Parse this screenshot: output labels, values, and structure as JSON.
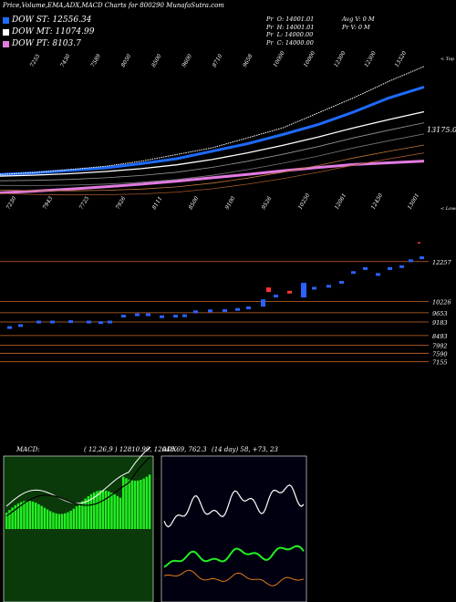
{
  "header": {
    "title": "Price,Volume,EMA,ADX,MACD Charts for 800290",
    "brand": "MunafaSutra.com"
  },
  "dow": [
    {
      "label": "DOW ST: 12556.34",
      "color": "#1e6bff"
    },
    {
      "label": "DOW MT: 11074.99",
      "color": "#ffffff"
    },
    {
      "label": "DOW PT: 8103.7",
      "color": "#e27be0"
    }
  ],
  "ohlc": {
    "col1": [
      "Pr",
      "Pr",
      "Pr",
      "Pr"
    ],
    "col1_vals": [
      "O: 14001.01",
      "H: 14001.01",
      "L: 14000.00",
      "C: 14000.00"
    ],
    "col2": [
      "Avg V: 0  M",
      "Pr  V: 0  M"
    ]
  },
  "price_panel": {
    "top_labels": [
      "7255",
      "7430",
      "7589",
      "8050",
      "8500",
      "9600",
      "8710",
      "9658",
      "10000",
      "10000",
      "12300",
      "12300",
      "13320"
    ],
    "bottom_labels": [
      "7230",
      "7943",
      "7725",
      "7926",
      "8111",
      "8500",
      "9100",
      "9526",
      "10250",
      "12061",
      "12450",
      "13001"
    ],
    "top_tag": "< Top",
    "bottom_tag": "< Lower",
    "price_tag": "13175.00"
  },
  "candle_panel": {
    "levels": [
      "12257",
      "10226",
      "9653",
      "9183",
      "8493",
      "7992",
      "7590",
      "7155"
    ]
  },
  "indicators": {
    "macd_label": "MACD:",
    "macd_vals": "( 12,26,9 ) 12810.99, 12048.69, 762.3",
    "adx_label": "ADX",
    "adx_vals": "(14 day) 58, +73, 23"
  },
  "colors": {
    "ema_short": "#1e6bff",
    "ema_mid": "#ffffff",
    "ema_long": "#e27be0",
    "macd_bar": "#22ee22",
    "adx_plus": "#22ee22",
    "adx_minus": "#e07b1a",
    "level_line": "#cc6a2a"
  },
  "chart_data": [
    {
      "type": "line",
      "title": "Price,Volume,EMA,ADX,MACD Charts for 800290",
      "series": [
        {
          "name": "DOW ST",
          "values": [
            7300,
            7400,
            7550,
            7700,
            7950,
            8250,
            8700,
            9150,
            9700,
            10300,
            11050,
            11900,
            12556
          ]
        },
        {
          "name": "DOW MT",
          "values": [
            7200,
            7260,
            7350,
            7480,
            7650,
            7880,
            8200,
            8600,
            9050,
            9550,
            10100,
            10600,
            11075
          ]
        },
        {
          "name": "DOW PT",
          "values": [
            6200,
            6300,
            6420,
            6560,
            6720,
            6900,
            7100,
            7300,
            7520,
            7720,
            7900,
            8000,
            8104
          ]
        }
      ],
      "price_last": 13175.0,
      "price_levels": [
        12257,
        10226,
        9653,
        9183,
        8493,
        7992,
        7590,
        7155
      ]
    },
    {
      "type": "bar",
      "title": "MACD",
      "params": "12,26,9",
      "macd": 12810.99,
      "signal": 12048.69,
      "histogram": 762.3
    },
    {
      "type": "line",
      "title": "ADX",
      "period": "14 day",
      "adx": 58,
      "plus_di": 73,
      "minus_di": 23
    }
  ]
}
